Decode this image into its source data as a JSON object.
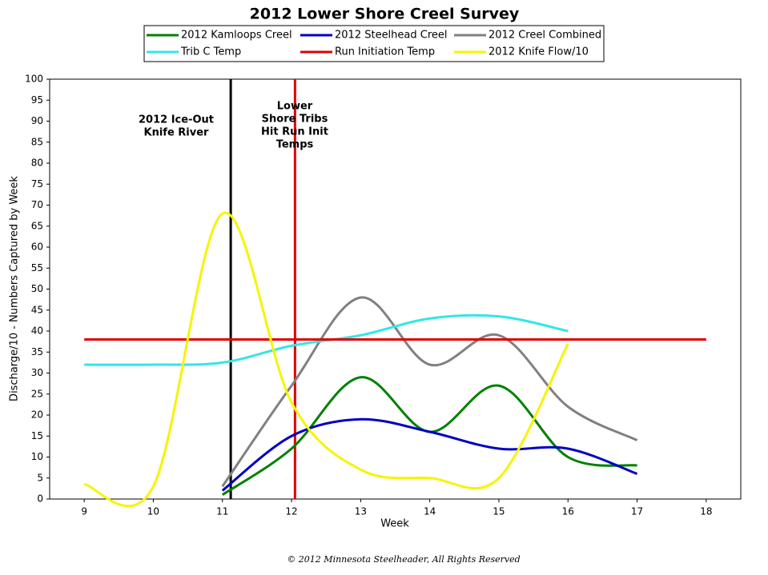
{
  "chart_data": {
    "type": "line",
    "title": "2012 Lower Shore Creel Survey",
    "xlabel": "Week",
    "ylabel": "Discharge/10 - Numbers Captured by Week",
    "footer": "© 2012 Minnesota Steelheader, All Rights Reserved",
    "xlim": [
      8.5,
      18.5
    ],
    "xticks": [
      9,
      10,
      11,
      12,
      13,
      14,
      15,
      16,
      17,
      18
    ],
    "ylim": [
      0,
      100
    ],
    "yticks": [
      0,
      5,
      10,
      15,
      20,
      25,
      30,
      35,
      40,
      45,
      50,
      55,
      60,
      65,
      70,
      75,
      80,
      85,
      90,
      95,
      100
    ],
    "grid": false,
    "series": [
      {
        "name": "2012 Kamloops Creel",
        "color": "#008000",
        "x": [
          11,
          12,
          13,
          14,
          15,
          16,
          17
        ],
        "values": [
          1,
          12,
          29,
          16,
          27,
          10,
          8
        ]
      },
      {
        "name": "2012 Steelhead Creel",
        "color": "#0000c0",
        "x": [
          11,
          12,
          13,
          14,
          15,
          16,
          17
        ],
        "values": [
          2,
          15,
          19,
          16,
          12,
          12,
          6
        ]
      },
      {
        "name": "2012 Creel Combined",
        "color": "#808080",
        "x": [
          11,
          12,
          13,
          14,
          15,
          16,
          17
        ],
        "values": [
          3,
          27,
          48,
          32,
          39,
          22,
          14
        ]
      },
      {
        "name": "Trib C Temp",
        "color": "#33e6e6",
        "x": [
          9,
          10,
          11,
          12,
          13,
          14,
          15,
          16
        ],
        "values": [
          32,
          32,
          32.5,
          36.5,
          39,
          43,
          43.5,
          40
        ]
      },
      {
        "name": "Run Initiation Temp",
        "color": "#e00000",
        "x": [
          9,
          18
        ],
        "values": [
          38,
          38
        ]
      },
      {
        "name": "2012 Knife Flow/10",
        "color": "#f5f500",
        "x": [
          9,
          10,
          11,
          12,
          13,
          14,
          15,
          16
        ],
        "values": [
          3.5,
          3,
          68,
          23,
          7,
          5,
          5,
          37
        ]
      }
    ],
    "vlines": [
      {
        "x": 11.12,
        "color": "#000000",
        "lines": [
          "2012 Ice-Out",
          "Knife River"
        ]
      },
      {
        "x": 12.05,
        "color": "#e00000",
        "lines": [
          "Lower",
          "Shore Tribs",
          "Hit Run Init",
          "Temps"
        ]
      }
    ]
  }
}
